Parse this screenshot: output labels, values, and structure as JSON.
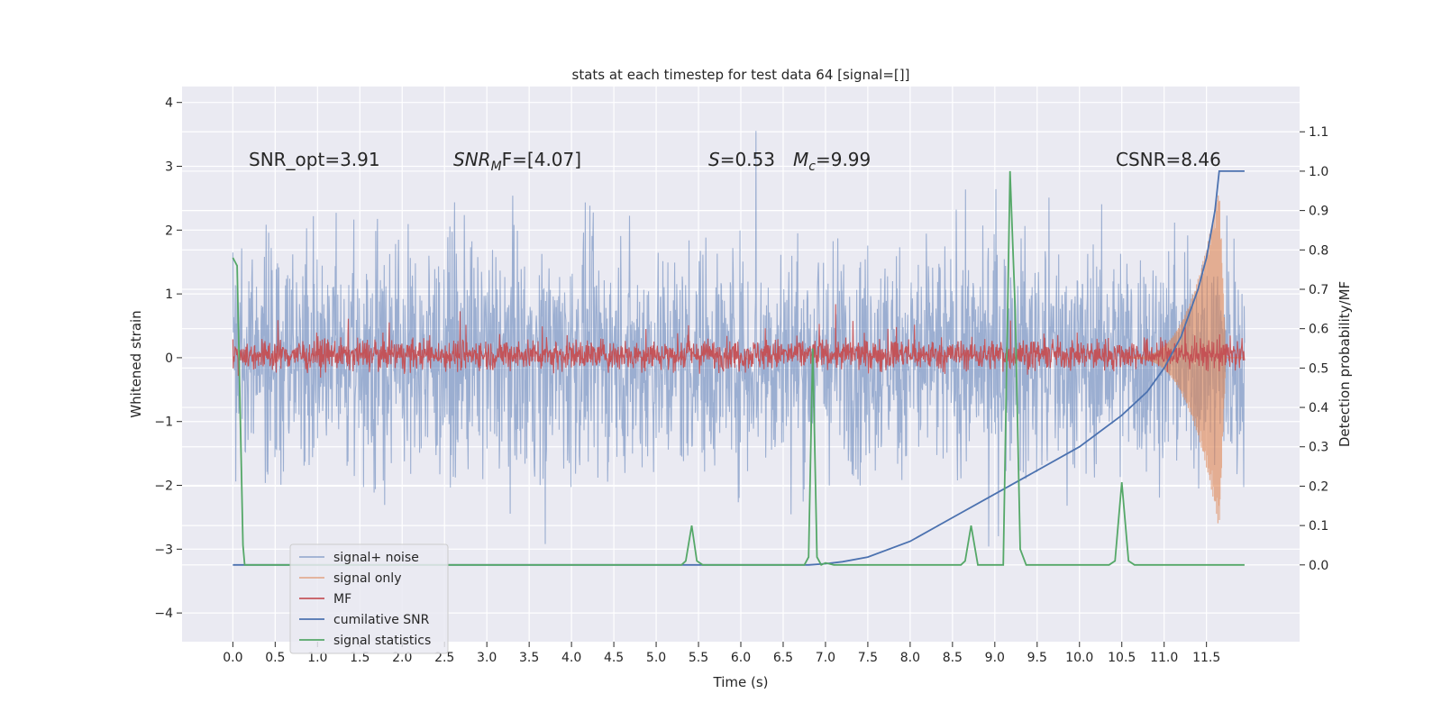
{
  "chart_data": {
    "type": "line",
    "title": "stats at each timestep for test data 64 [signal=[]]",
    "xlabel": "Time (s)",
    "ylabel_left": "Whitened strain",
    "ylabel_right": "Detection probability/MF",
    "xlim": [
      -0.6,
      12.6
    ],
    "ylim_left": [
      -4.45,
      4.25
    ],
    "ylim_right": [
      -0.195,
      1.215
    ],
    "x_ticks": [
      "0.0",
      "0.5",
      "1.0",
      "1.5",
      "2.0",
      "2.5",
      "3.0",
      "3.5",
      "4.0",
      "4.5",
      "5.0",
      "5.5",
      "6.0",
      "6.5",
      "7.0",
      "7.5",
      "8.0",
      "8.5",
      "9.0",
      "9.5",
      "10.0",
      "10.5",
      "11.0",
      "11.5"
    ],
    "y_ticks_left": [
      "4",
      "3",
      "2",
      "1",
      "0",
      "−1",
      "−2",
      "−3",
      "−4"
    ],
    "y_ticks_right": [
      "1.1",
      "1.0",
      "0.9",
      "0.8",
      "0.7",
      "0.6",
      "0.5",
      "0.4",
      "0.3",
      "0.2",
      "0.1",
      "0.0"
    ],
    "grid": true,
    "legend_position": "lower-left",
    "annotations": {
      "snr_opt": "SNR_opt=3.91",
      "snr_mf_main": "SNR",
      "snr_mf_sub": "M",
      "snr_mf_tail": "F=[4.07]",
      "s_var": "S",
      "s_val": "=0.53",
      "mc_var": "M",
      "mc_sub": "c",
      "mc_val": "=9.99",
      "csnr": "CSNR=8.46"
    },
    "series": [
      {
        "name": "signal+ noise",
        "color": "#4c72b0",
        "axis": "left",
        "description_amplitude": [
          -3.6,
          3.9
        ]
      },
      {
        "name": "signal only",
        "color": "#dd8452",
        "axis": "left",
        "envelope_start_x": 10.5,
        "envelope_peak_x": 11.65,
        "peak_value": 2.7
      },
      {
        "name": "MF",
        "color": "#c44e52",
        "axis": "left",
        "range": [
          -0.45,
          0.95
        ]
      },
      {
        "name": "cumilative SNR",
        "color": "#4c72b0",
        "axis": "right",
        "x": [
          0.0,
          6.8,
          7.0,
          7.2,
          7.5,
          8.0,
          8.5,
          9.0,
          9.5,
          10.0,
          10.5,
          10.8,
          11.0,
          11.2,
          11.4,
          11.5,
          11.6,
          11.65,
          11.7,
          11.85,
          11.95
        ],
        "values": [
          0.0,
          0.0,
          0.003,
          0.008,
          0.02,
          0.06,
          0.12,
          0.18,
          0.24,
          0.3,
          0.38,
          0.44,
          0.5,
          0.58,
          0.7,
          0.78,
          0.9,
          1.0,
          1.0,
          1.0,
          1.0
        ]
      },
      {
        "name": "signal statistics",
        "color": "#55a868",
        "axis": "right",
        "x": [
          0.0,
          0.05,
          0.12,
          0.14,
          5.3,
          5.35,
          5.42,
          5.48,
          5.55,
          5.6,
          6.75,
          6.8,
          6.85,
          6.9,
          6.95,
          7.0,
          7.1,
          7.6,
          8.0,
          8.6,
          8.65,
          8.72,
          8.8,
          8.88,
          9.1,
          9.18,
          9.24,
          9.3,
          9.37,
          10.35,
          10.42,
          10.5,
          10.58,
          10.65,
          11.95
        ],
        "values": [
          0.78,
          0.76,
          0.05,
          0.0,
          0.0,
          0.01,
          0.1,
          0.01,
          0.0,
          0.0,
          0.0,
          0.02,
          0.55,
          0.02,
          0.0,
          0.005,
          0.0,
          0.0,
          0.0,
          0.0,
          0.01,
          0.1,
          0.0,
          0.0,
          0.0,
          1.0,
          0.65,
          0.04,
          0.0,
          0.0,
          0.01,
          0.21,
          0.01,
          0.0,
          0.0
        ]
      }
    ]
  }
}
